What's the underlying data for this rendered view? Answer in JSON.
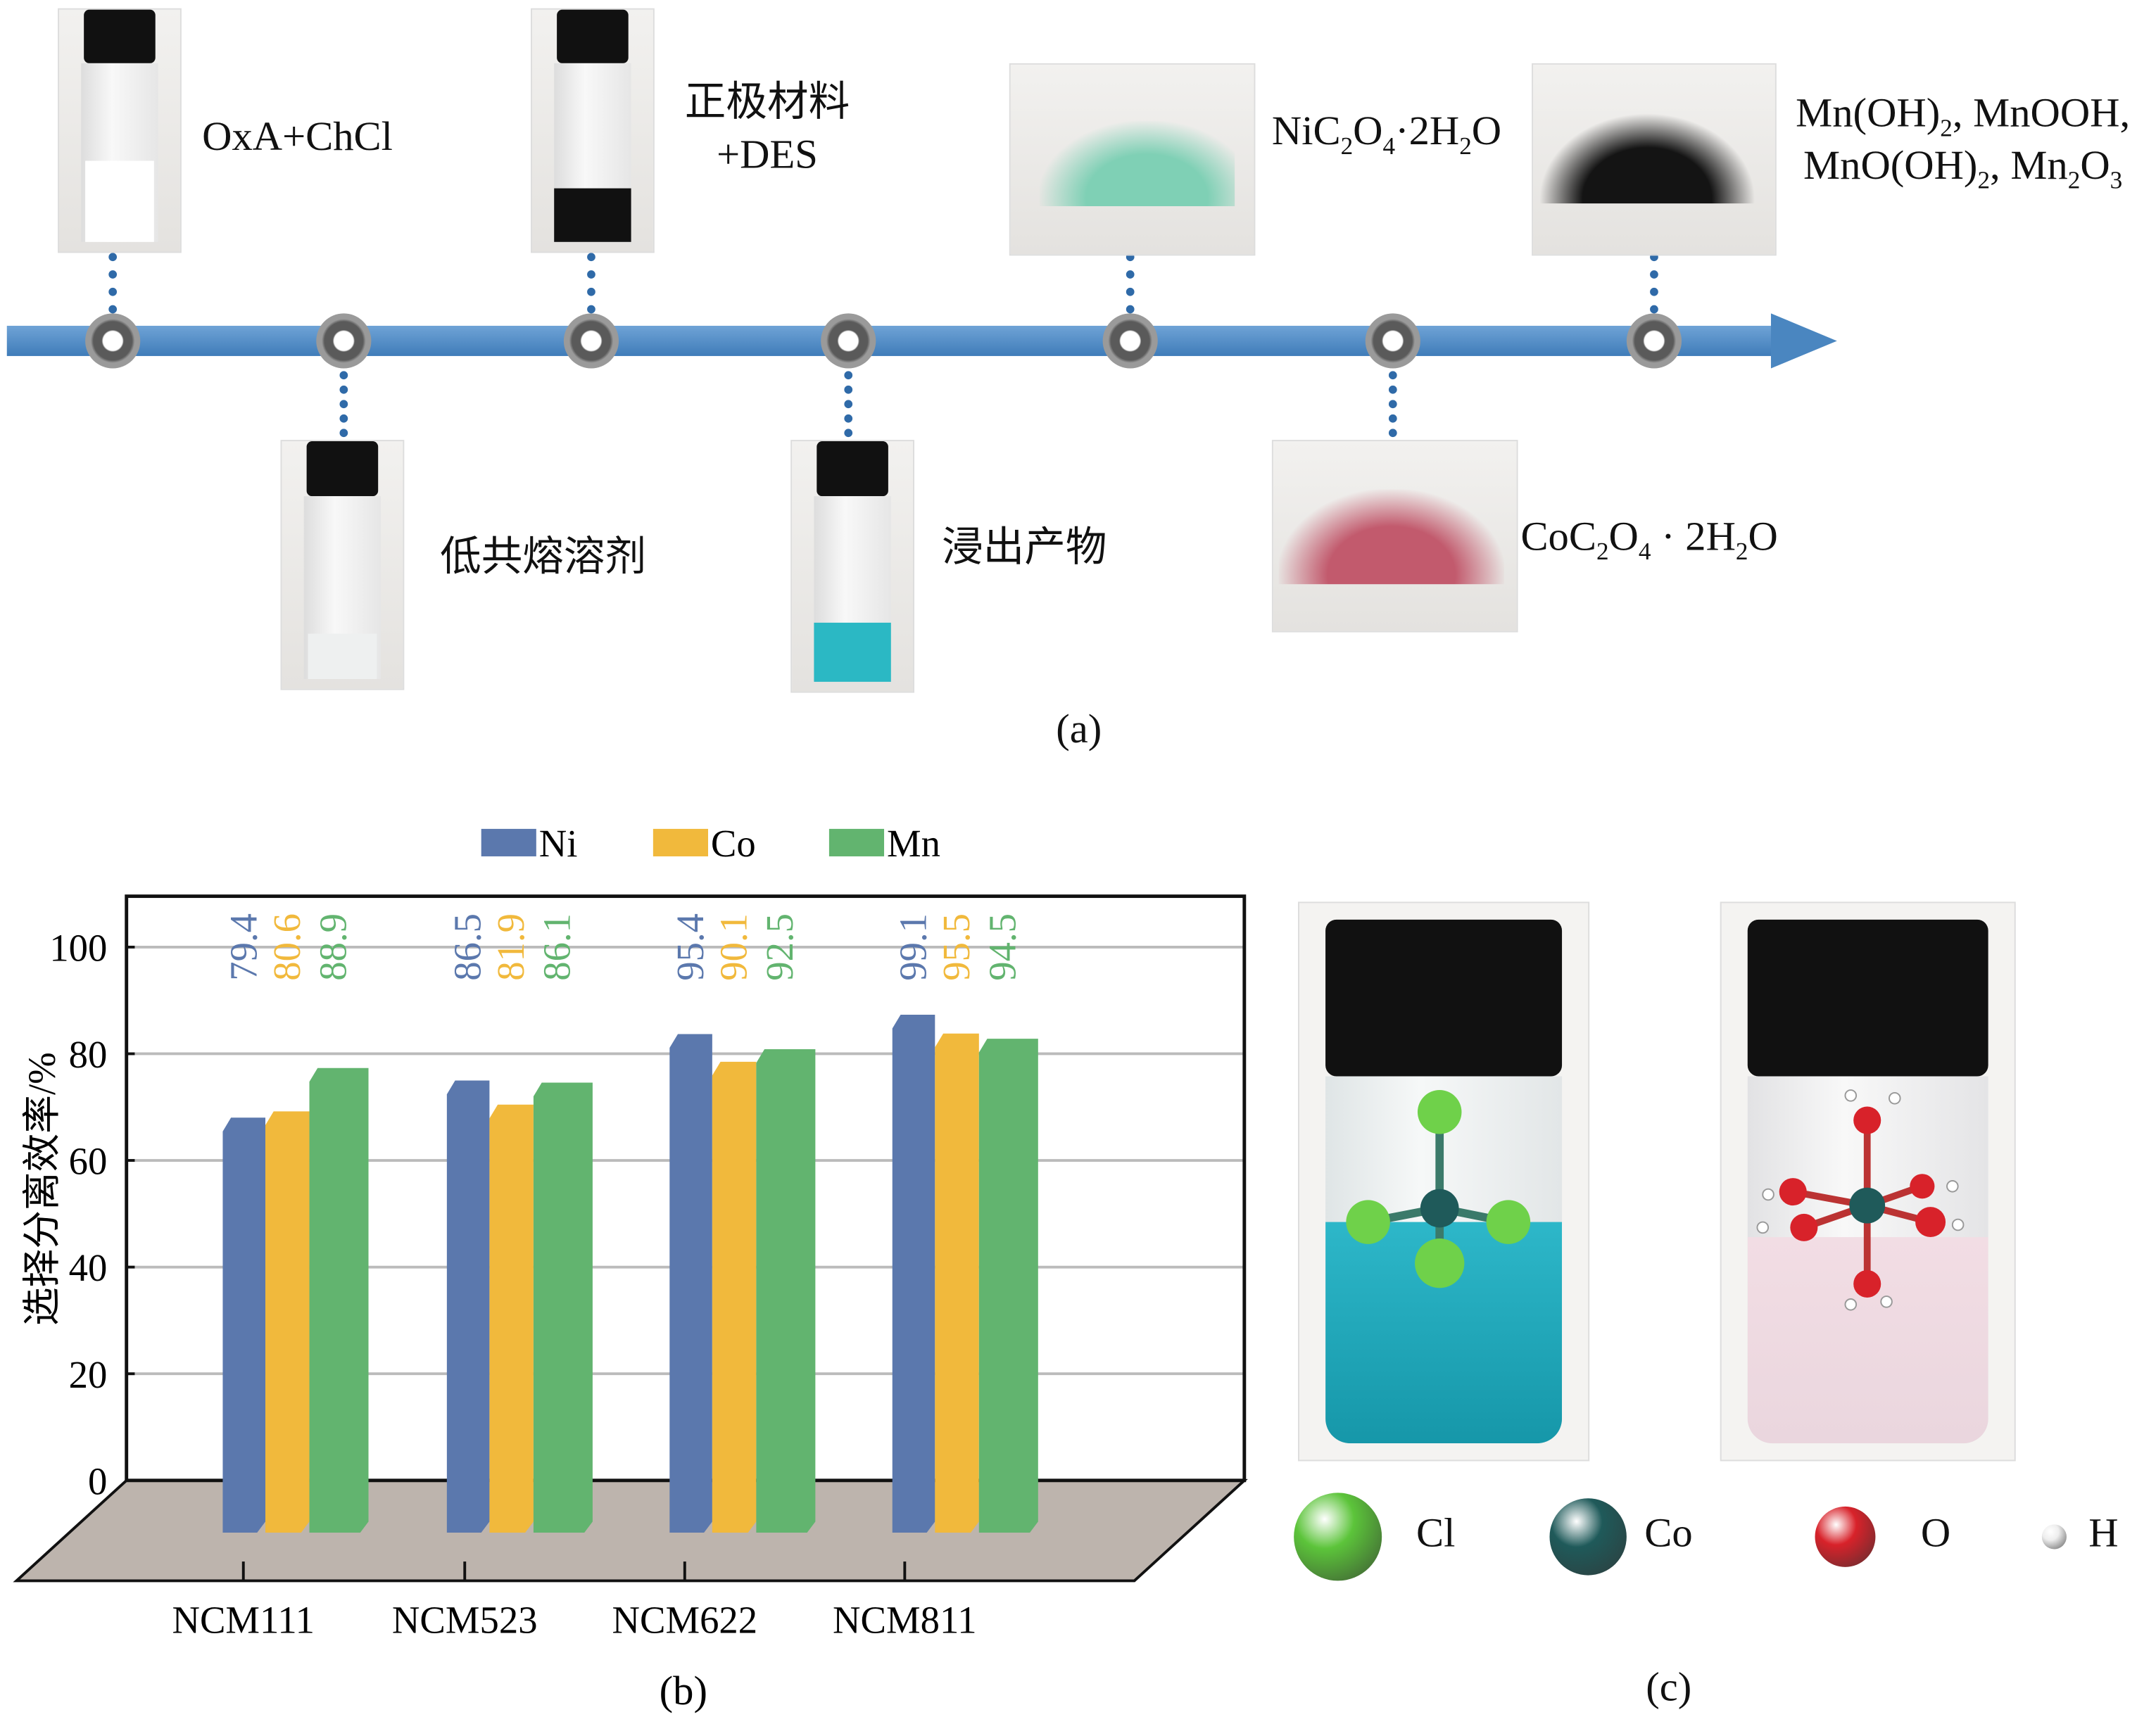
{
  "panel_a": {
    "label": "(a)",
    "steps": [
      {
        "text": "OxA+ChCl",
        "kind": "vial-white-powder"
      },
      {
        "text": "低共熔溶剂",
        "kind": "vial-clear-liquid"
      },
      {
        "text": "正极材料\n+DES",
        "kind": "vial-black"
      },
      {
        "text": "浸出产物",
        "kind": "vial-cyan"
      },
      {
        "text": "NiC2O4·2H2O",
        "kind": "powder-green"
      },
      {
        "text": "CoC2O4 · 2H2O",
        "kind": "powder-pink"
      },
      {
        "text": "Mn(OH)2, MnOOH, MnO(OH)2, Mn2O3",
        "kind": "powder-black"
      }
    ],
    "timeline_color": "#4a86c0"
  },
  "chart_data": {
    "type": "bar",
    "categories": [
      "NCM111",
      "NCM523",
      "NCM622",
      "NCM811"
    ],
    "series": [
      {
        "name": "Ni",
        "values": [
          79.4,
          86.5,
          95.4,
          99.1
        ],
        "color": "#5b78ad"
      },
      {
        "name": "Co",
        "values": [
          80.6,
          81.9,
          90.1,
          95.5
        ],
        "color": "#f1b93c"
      },
      {
        "name": "Mn",
        "values": [
          88.9,
          86.1,
          92.5,
          94.5
        ],
        "color": "#62b46f"
      }
    ],
    "ylabel": "选择分离效率/%",
    "xlabel": "",
    "ylim": [
      0,
      100
    ],
    "yticks": [
      0,
      20,
      40,
      60,
      80,
      100
    ],
    "grid": true,
    "legend": "top",
    "style": "3d",
    "panel_label": "(b)"
  },
  "panel_c": {
    "label": "(c)",
    "legend": [
      {
        "text": "Cl",
        "color": "#5cc43a"
      },
      {
        "text": "Co",
        "color": "#1f5a5a"
      },
      {
        "text": "O",
        "color": "#d8222a"
      },
      {
        "text": "H",
        "color": "#eeeeee"
      }
    ]
  }
}
